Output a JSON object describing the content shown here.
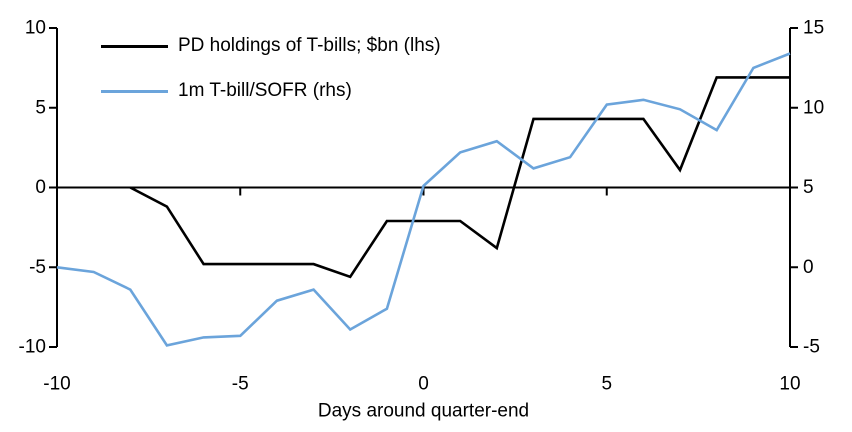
{
  "chart_data": {
    "type": "line",
    "title": "",
    "x_label": "Days around quarter-end",
    "x": [
      -10,
      -9,
      -8,
      -7,
      -6,
      -5,
      -4,
      -3,
      -2,
      -1,
      0,
      1,
      2,
      3,
      4,
      5,
      6,
      7,
      8,
      9,
      10
    ],
    "x_ticks": [
      -10,
      -5,
      0,
      5,
      10
    ],
    "left_axis": {
      "range": [
        -10,
        10
      ],
      "ticks": [
        10,
        5,
        0,
        -5,
        -10
      ]
    },
    "right_axis": {
      "range": [
        -5,
        15
      ],
      "ticks": [
        15,
        10,
        5,
        0,
        -5
      ]
    },
    "grid": "off",
    "legend_position": "top-left",
    "zero_line": 0,
    "series": [
      {
        "name": "PD holdings of T-bills; $bn (lhs)",
        "axis": "lhs",
        "color": "#000000",
        "values": [
          null,
          null,
          0,
          -1.2,
          -4.8,
          -4.8,
          -4.8,
          -4.8,
          -5.6,
          -2.1,
          -2.1,
          -2.1,
          -3.8,
          4.3,
          4.3,
          4.3,
          4.3,
          1.1,
          6.9,
          6.9,
          6.9
        ]
      },
      {
        "name": "1m T-bill/SOFR (rhs)",
        "axis": "rhs",
        "color": "#6BA4DB",
        "values": [
          0,
          -0.3,
          -1.4,
          -4.9,
          -4.4,
          -4.3,
          -2.1,
          -1.4,
          -3.9,
          -2.6,
          5.1,
          7.2,
          7.9,
          6.2,
          6.9,
          10.2,
          10.5,
          9.9,
          8.6,
          12.5,
          13.4
        ]
      }
    ],
    "colors": {
      "axis": "#000000",
      "background": "#ffffff"
    }
  }
}
